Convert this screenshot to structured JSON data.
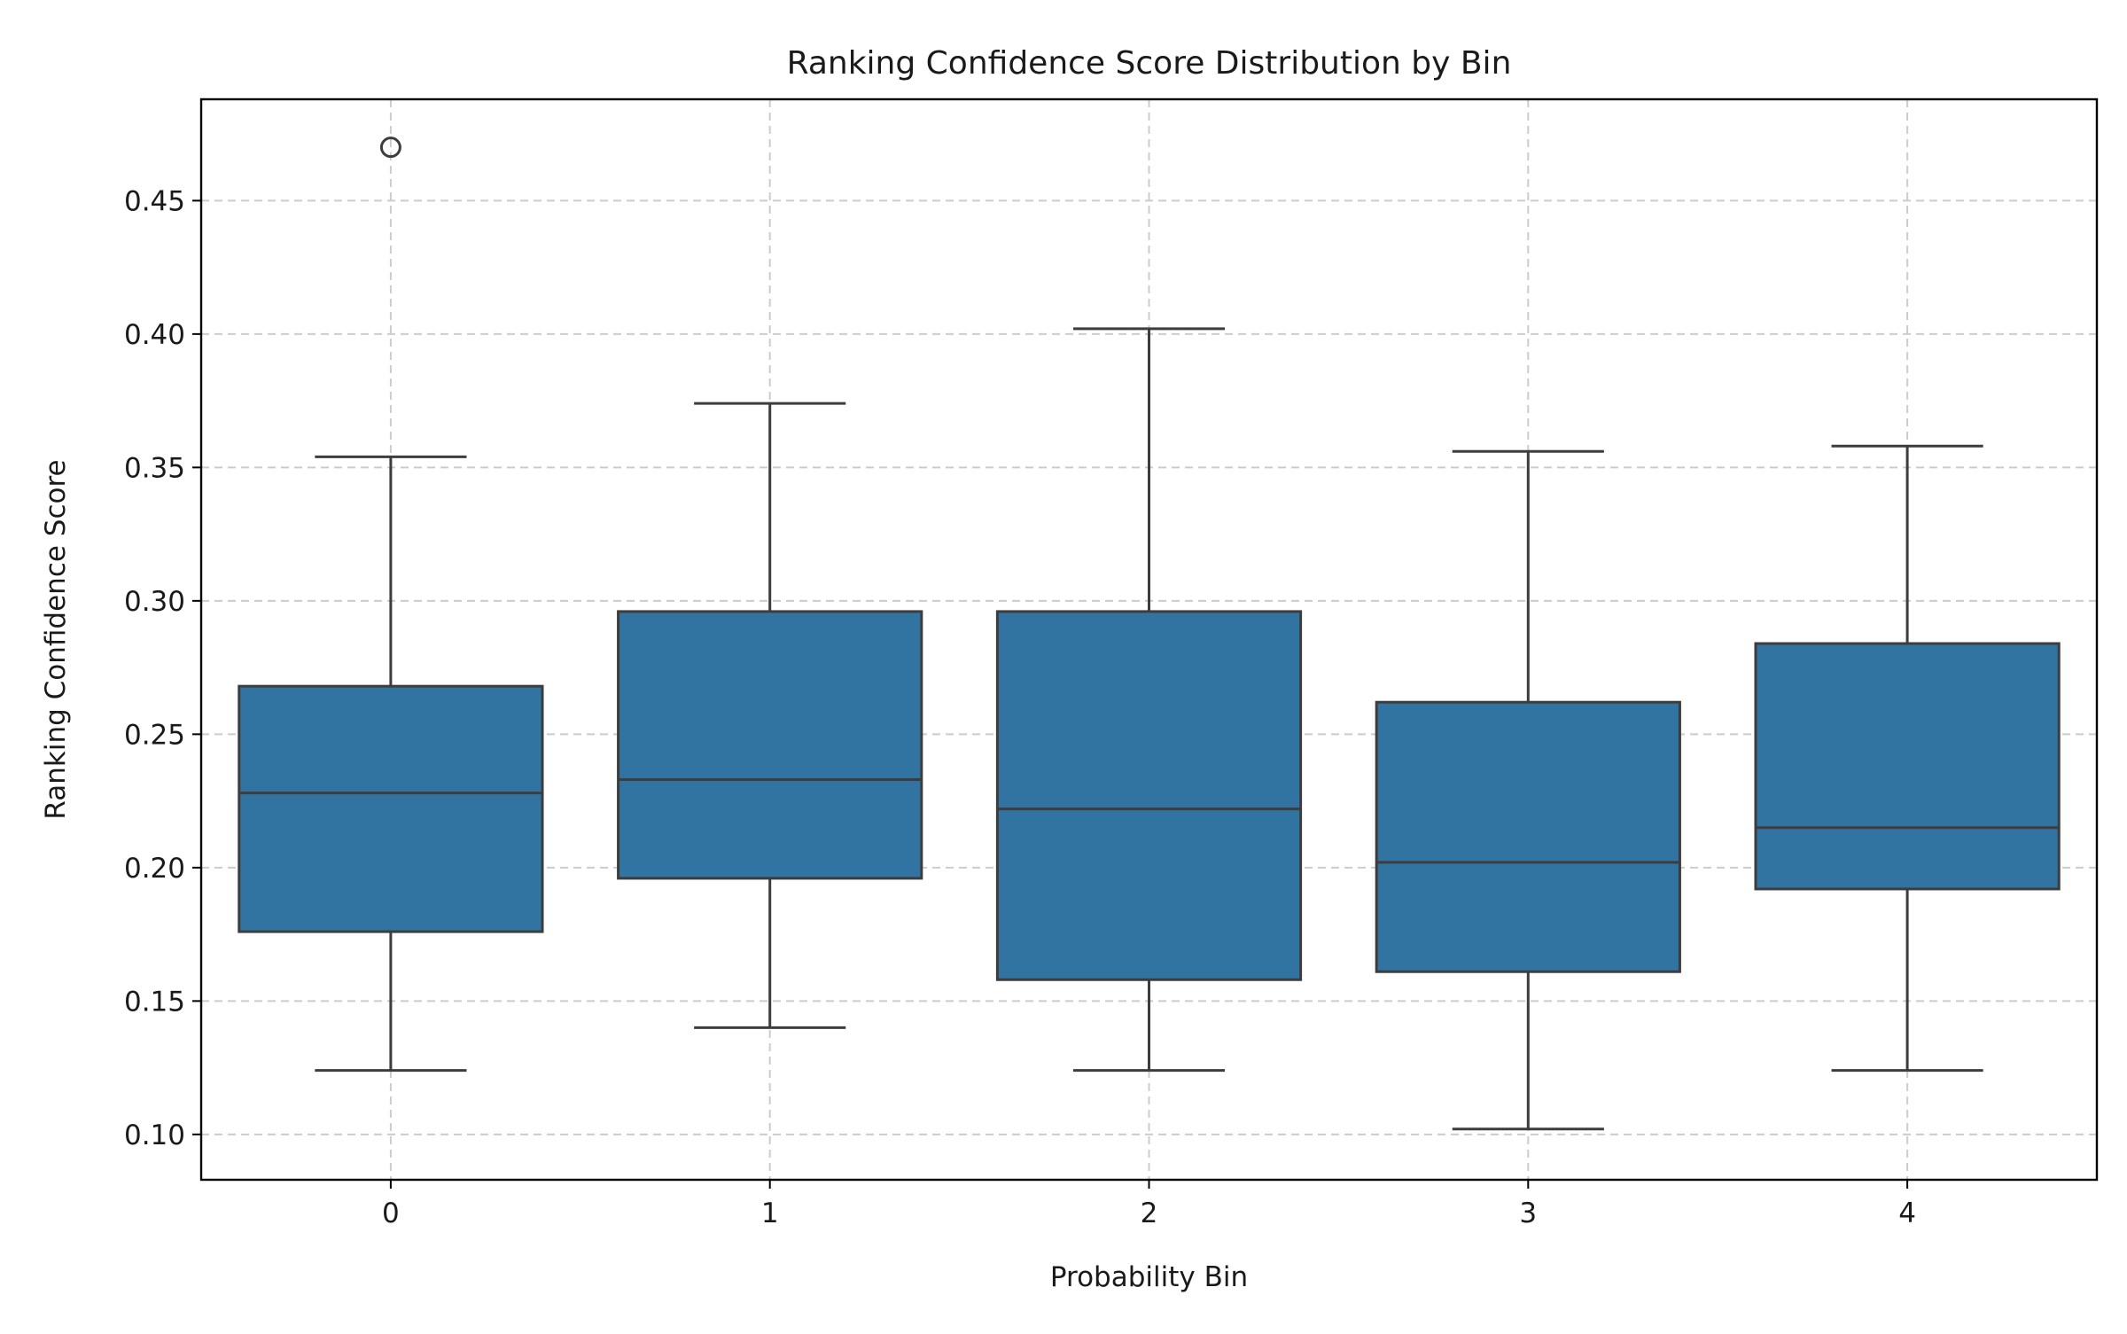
{
  "chart_data": {
    "type": "box",
    "title": "Ranking Confidence Score Distribution by Bin",
    "xlabel": "Probability Bin",
    "ylabel": "Ranking Confidence Score",
    "categories": [
      "0",
      "1",
      "2",
      "3",
      "4"
    ],
    "ylim": [
      0.083,
      0.488
    ],
    "yticks": [
      0.1,
      0.15,
      0.2,
      0.25,
      0.3,
      0.35,
      0.4,
      0.45
    ],
    "ytick_labels": [
      "0.10",
      "0.15",
      "0.20",
      "0.25",
      "0.30",
      "0.35",
      "0.40",
      "0.45"
    ],
    "grid": true,
    "box_color": "#3274a1",
    "edge_color": "#3d3d3d",
    "boxes": [
      {
        "category": "0",
        "whisker_low": 0.124,
        "q1": 0.176,
        "median": 0.228,
        "q3": 0.268,
        "whisker_high": 0.354,
        "outliers": [
          0.47
        ]
      },
      {
        "category": "1",
        "whisker_low": 0.14,
        "q1": 0.196,
        "median": 0.233,
        "q3": 0.296,
        "whisker_high": 0.374,
        "outliers": []
      },
      {
        "category": "2",
        "whisker_low": 0.124,
        "q1": 0.158,
        "median": 0.222,
        "q3": 0.296,
        "whisker_high": 0.402,
        "outliers": []
      },
      {
        "category": "3",
        "whisker_low": 0.102,
        "q1": 0.161,
        "median": 0.202,
        "q3": 0.262,
        "whisker_high": 0.356,
        "outliers": []
      },
      {
        "category": "4",
        "whisker_low": 0.124,
        "q1": 0.192,
        "median": 0.215,
        "q3": 0.284,
        "whisker_high": 0.358,
        "outliers": []
      }
    ]
  }
}
